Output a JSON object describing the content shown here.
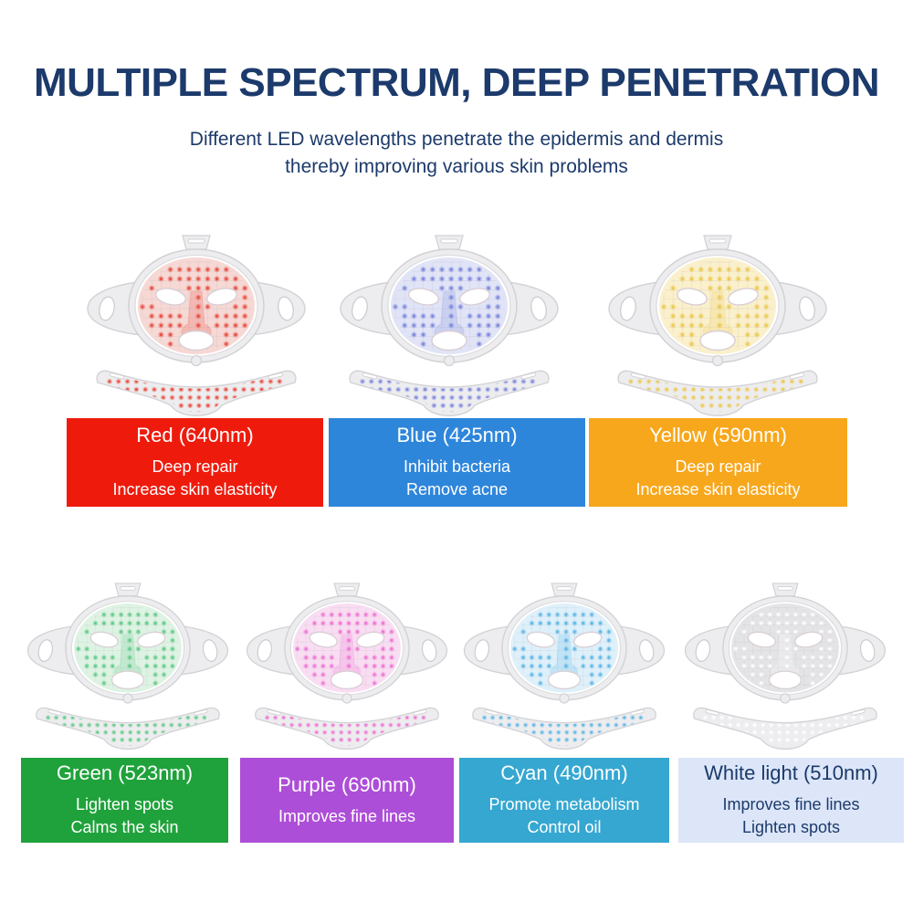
{
  "header": {
    "title": "MULTIPLE SPECTRUM, DEEP PENETRATION",
    "subtitle_line1": "Different LED wavelengths penetrate the epidermis and dermis",
    "subtitle_line2": "thereby improving various skin problems",
    "text_color": "#1c3a6b"
  },
  "masks": [
    {
      "name": "red",
      "label": "Red (640nm)",
      "benefit1": "Deep repair",
      "benefit2": "Increase skin elasticity",
      "card_color": "#ee1b0d",
      "card_text_color": "#ffffff",
      "led_color": "#e94b3f",
      "tint_color": "#f6d8d4"
    },
    {
      "name": "blue",
      "label": "Blue (425nm)",
      "benefit1": "Inhibit bacteria",
      "benefit2": "Remove acne",
      "card_color": "#2e86db",
      "card_text_color": "#ffffff",
      "led_color": "#7b87dc",
      "tint_color": "#e1e4f6"
    },
    {
      "name": "yellow",
      "label": "Yellow (590nm)",
      "benefit1": "Deep repair",
      "benefit2": "Increase skin elasticity",
      "card_color": "#f7a71b",
      "card_text_color": "#ffffff",
      "led_color": "#ecc84e",
      "tint_color": "#faf0cc"
    },
    {
      "name": "green",
      "label": "Green (523nm)",
      "benefit1": "Lighten spots",
      "benefit2": "Calms the skin",
      "card_color": "#1fa23b",
      "card_text_color": "#ffffff",
      "led_color": "#5ec987",
      "tint_color": "#def3e3"
    },
    {
      "name": "purple",
      "label": "Purple (690nm)",
      "benefit1": "Improves fine lines",
      "benefit2": "",
      "card_color": "#ad4ed8",
      "card_text_color": "#ffffff",
      "led_color": "#ee71d3",
      "tint_color": "#f9ddf2"
    },
    {
      "name": "cyan",
      "label": "Cyan (490nm)",
      "benefit1": "Promote metabolism",
      "benefit2": "Control oil",
      "card_color": "#35a7d1",
      "card_text_color": "#ffffff",
      "led_color": "#5cb5e6",
      "tint_color": "#def0fa"
    },
    {
      "name": "white",
      "label": "White light (510nm)",
      "benefit1": "Improves fine lines",
      "benefit2": "Lighten spots",
      "card_color": "#dce6f8",
      "card_text_color": "#1c3a6b",
      "led_color": "#ffffff",
      "tint_color": "#e4e4e7"
    }
  ]
}
